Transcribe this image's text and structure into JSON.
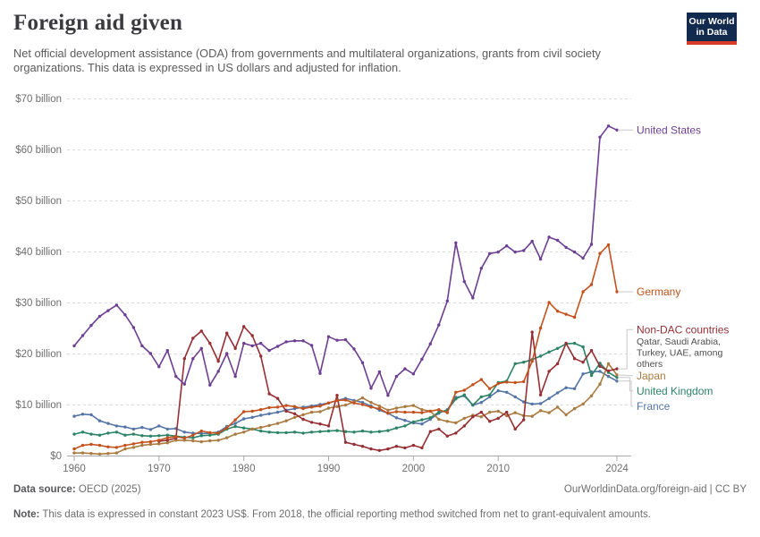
{
  "header": {
    "title": "Foreign aid given",
    "subtitle": "Net official development assistance (ODA) from governments and multilateral organizations, grants from civil society organizations. This data is expressed in US dollars and adjusted for inflation."
  },
  "logo": {
    "line1": "Our World",
    "line2": "in Data",
    "bg": "#122A4E",
    "accent": "#D93B2B"
  },
  "footer": {
    "source_label": "Data source:",
    "source_value": "OECD (2025)",
    "link": "OurWorldinData.org/foreign-aid | CC BY",
    "note_label": "Note:",
    "note_text": "This data is expressed in constant 2023 US$. From 2018, the official reporting method switched from net to grant-equivalent amounts."
  },
  "chart_data": {
    "type": "line",
    "title": "Foreign aid given",
    "unit": "billion US$ (constant 2023 US$)",
    "grid": "horizontal dashed",
    "legend_position": "right entity labels",
    "ylim": [
      0,
      70
    ],
    "y_ticks": [
      {
        "v": 0,
        "label": "$0"
      },
      {
        "v": 10,
        "label": "$10 billion"
      },
      {
        "v": 20,
        "label": "$20 billion"
      },
      {
        "v": 30,
        "label": "$30 billion"
      },
      {
        "v": 40,
        "label": "$40 billion"
      },
      {
        "v": 50,
        "label": "$50 billion"
      },
      {
        "v": 60,
        "label": "$60 billion"
      },
      {
        "v": 70,
        "label": "$70 billion"
      }
    ],
    "x_ticks": [
      1960,
      1970,
      1980,
      1990,
      2000,
      2010,
      2024
    ],
    "x_range": [
      1960,
      2024
    ],
    "series": [
      {
        "name": "United States",
        "color": "#6D3E91",
        "start_year": 1960,
        "values": [
          21.5,
          23.5,
          25.5,
          27.3,
          28.4,
          29.5,
          27.6,
          25.1,
          21.5,
          20.0,
          17.4,
          20.6,
          15.5,
          14.0,
          19.0,
          21.0,
          13.8,
          16.5,
          20.0,
          15.5,
          22.0,
          21.5,
          22.0,
          20.6,
          21.4,
          22.3,
          22.5,
          22.5,
          21.6,
          16.1,
          23.3,
          22.6,
          22.7,
          20.9,
          18.2,
          13.2,
          16.4,
          11.8,
          15.5,
          17.0,
          16.0,
          18.9,
          21.9,
          25.6,
          30.3,
          41.7,
          34.1,
          30.9,
          36.7,
          39.6,
          39.9,
          41.1,
          39.9,
          40.2,
          42.0,
          38.5,
          42.8,
          42.2,
          40.8,
          39.9,
          38.7,
          41.4,
          62.4,
          64.6,
          63.8
        ]
      },
      {
        "name": "Germany",
        "color": "#C4511C",
        "start_year": 1960,
        "values": [
          1.3,
          2.0,
          2.2,
          2.0,
          1.7,
          1.6,
          2.0,
          2.3,
          2.6,
          2.7,
          3.0,
          3.5,
          3.7,
          3.4,
          4.0,
          4.8,
          4.5,
          4.4,
          5.4,
          7.0,
          8.6,
          8.7,
          9.0,
          9.4,
          9.5,
          9.8,
          9.6,
          9.2,
          9.5,
          9.7,
          10.3,
          10.8,
          10.9,
          10.3,
          10.0,
          9.5,
          9.2,
          8.3,
          8.6,
          8.5,
          8.5,
          8.4,
          8.7,
          9.0,
          8.4,
          12.4,
          12.8,
          13.9,
          14.9,
          13.1,
          14.1,
          14.4,
          14.3,
          14.5,
          18.5,
          25.0,
          30.0,
          28.3,
          27.7,
          27.1,
          32.1,
          33.5,
          39.6,
          41.3,
          32.1
        ]
      },
      {
        "name": "Non-DAC countries",
        "color": "#962F34",
        "start_year": 1970,
        "annotation": "Qatar, Saudi Arabia, Turkey, UAE, among others",
        "annotation_lines": [
          "Qatar, Saudi Arabia,",
          "Turkey, UAE, among",
          "others"
        ],
        "values": [
          2.8,
          3.0,
          3.4,
          19.0,
          23.0,
          24.4,
          22.0,
          18.5,
          24.0,
          21.0,
          25.3,
          23.5,
          19.5,
          12.1,
          11.2,
          8.7,
          8.2,
          7.1,
          6.5,
          6.2,
          5.8,
          11.8,
          2.6,
          2.2,
          1.8,
          1.3,
          1.0,
          1.3,
          1.8,
          1.5,
          2.0,
          1.5,
          4.7,
          5.2,
          3.8,
          4.4,
          5.8,
          7.6,
          8.5,
          6.7,
          7.3,
          8.5,
          5.2,
          7.0,
          24.2,
          11.9,
          16.5,
          18.0,
          22.0,
          19.0,
          18.3,
          20.6,
          17.5,
          16.6,
          17.0
        ]
      },
      {
        "name": "Japan",
        "color": "#AA7B40",
        "start_year": 1960,
        "values": [
          0.5,
          0.5,
          0.4,
          0.3,
          0.4,
          0.5,
          1.3,
          1.6,
          2.0,
          2.2,
          2.3,
          2.5,
          3.0,
          3.0,
          2.9,
          2.7,
          2.9,
          3.0,
          3.5,
          4.2,
          4.6,
          5.2,
          5.5,
          5.9,
          6.3,
          6.8,
          7.5,
          8.0,
          8.5,
          8.6,
          9.3,
          9.6,
          9.9,
          10.5,
          11.3,
          10.4,
          9.7,
          8.9,
          9.3,
          9.6,
          9.8,
          9.0,
          8.7,
          7.1,
          6.7,
          6.4,
          7.3,
          7.9,
          7.6,
          8.5,
          8.7,
          7.8,
          8.4,
          7.8,
          7.7,
          8.8,
          8.4,
          9.5,
          8.0,
          9.2,
          10.1,
          11.7,
          14.0,
          18.0,
          15.8
        ]
      },
      {
        "name": "United Kingdom",
        "color": "#2C8465",
        "start_year": 1960,
        "values": [
          4.2,
          4.6,
          4.2,
          4.0,
          4.4,
          4.6,
          4.0,
          4.2,
          3.9,
          3.8,
          3.9,
          4.0,
          3.8,
          3.6,
          3.5,
          3.9,
          4.0,
          4.2,
          5.2,
          5.7,
          5.4,
          5.2,
          4.8,
          4.6,
          4.5,
          4.5,
          4.6,
          4.4,
          4.6,
          4.7,
          4.8,
          4.9,
          4.7,
          4.6,
          4.8,
          4.6,
          4.7,
          4.9,
          5.4,
          5.8,
          6.6,
          7.0,
          7.4,
          8.5,
          8.9,
          11.1,
          11.9,
          9.9,
          11.5,
          11.9,
          14.3,
          14.6,
          18.0,
          18.3,
          18.8,
          19.5,
          20.3,
          21.0,
          21.9,
          22.0,
          21.3,
          15.7,
          18.1,
          16.3,
          15.3
        ]
      },
      {
        "name": "France",
        "color": "#5574A6",
        "start_year": 1960,
        "values": [
          7.7,
          8.1,
          8.0,
          6.8,
          6.3,
          5.8,
          5.6,
          5.2,
          5.5,
          5.1,
          5.8,
          5.2,
          5.3,
          4.6,
          4.4,
          4.3,
          4.4,
          4.6,
          5.7,
          6.3,
          7.2,
          7.5,
          7.9,
          8.2,
          8.5,
          8.9,
          9.2,
          9.5,
          9.7,
          10.0,
          10.3,
          10.8,
          11.2,
          10.8,
          10.4,
          9.7,
          8.9,
          8.3,
          7.4,
          6.9,
          6.4,
          6.2,
          7.1,
          8.3,
          9.0,
          11.4,
          11.7,
          9.9,
          10.4,
          11.5,
          12.7,
          12.4,
          11.5,
          10.5,
          10.1,
          10.2,
          11.2,
          12.3,
          13.3,
          13.1,
          16.0,
          16.4,
          16.5,
          15.5,
          14.6
        ]
      }
    ]
  }
}
